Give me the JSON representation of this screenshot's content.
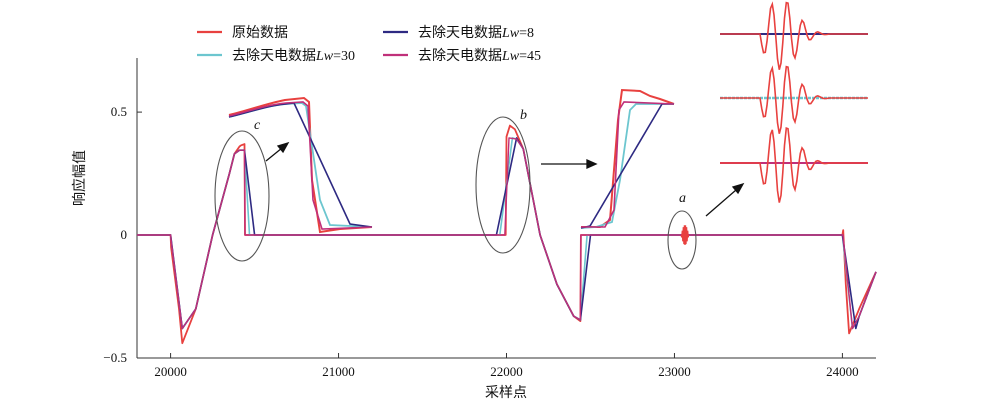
{
  "chart_data": {
    "type": "line",
    "xlabel": "采样点",
    "ylabel": "响应幅值",
    "xlim": [
      19800,
      24200
    ],
    "ylim": [
      -0.5,
      0.72
    ],
    "xticks": [
      {
        "value": 20000,
        "label": "20000"
      },
      {
        "value": 21000,
        "label": "21000"
      },
      {
        "value": 22000,
        "label": "22000"
      },
      {
        "value": 23000,
        "label": "23000"
      },
      {
        "value": 24000,
        "label": "24000"
      }
    ],
    "yticks": [
      {
        "value": 0.5,
        "label": "0.5"
      },
      {
        "value": 0,
        "label": "0"
      },
      {
        "value": -0.5,
        "label": "−0.5"
      }
    ],
    "legend": {
      "placement": "top-left",
      "entries": [
        {
          "name": "原始数据",
          "color": "#e8413f"
        },
        {
          "name": "去除天电数据",
          "sub": "Lw",
          "value": "=30",
          "color": "#6cc6cf"
        },
        {
          "name": "去除天电数据",
          "sub": "Lw",
          "value": "=8",
          "color": "#2e2a82"
        },
        {
          "name": "去除天电数据",
          "sub": "Lw",
          "value": "=45",
          "color": "#c0307a"
        }
      ]
    },
    "series": [
      {
        "name": "原始数据",
        "color": "#e8413f",
        "x": [
          19800,
          20000,
          20003,
          20050,
          20070,
          20150,
          20250,
          20350,
          20380,
          20410,
          20420,
          20440,
          20443,
          20600,
          21000,
          21500,
          21900,
          21995,
          22000,
          22020,
          22050,
          22100,
          22200,
          22300,
          22400,
          22440,
          22443,
          22900,
          23000,
          23300,
          23700,
          24000,
          24005,
          24020,
          24040,
          24100,
          24200
        ],
        "y": [
          0,
          0,
          -0.05,
          -0.3,
          -0.44,
          -0.3,
          0.0,
          0.25,
          0.33,
          0.36,
          0.365,
          0.37,
          0.0,
          0,
          0,
          0,
          0,
          0,
          0.4,
          0.445,
          0.43,
          0.35,
          0.0,
          -0.2,
          -0.33,
          -0.35,
          0.0,
          0,
          0,
          0,
          0,
          0,
          0.02,
          -0.2,
          -0.4,
          -0.3,
          -0.15
        ]
      },
      {
        "name": "去除天电数据Lw=30",
        "color": "#6cc6cf",
        "x": [
          19800,
          20000,
          20070,
          20150,
          20250,
          20350,
          20380,
          20410,
          20440,
          20470,
          20600,
          21000,
          21500,
          21960,
          22035,
          22060,
          22100,
          22200,
          22300,
          22400,
          22440,
          22480,
          22900,
          23300,
          23700,
          24000,
          24060,
          24100,
          24200
        ],
        "y": [
          0,
          0,
          -0.38,
          -0.3,
          0.0,
          0.25,
          0.33,
          0.345,
          0.345,
          0.0,
          0,
          0,
          0,
          0,
          0.395,
          0.39,
          0.35,
          0.0,
          -0.2,
          -0.33,
          -0.345,
          0.0,
          0,
          0,
          0,
          0,
          -0.38,
          -0.33,
          -0.15
        ]
      },
      {
        "name": "去除天电数据Lw=8",
        "color": "#2e2a82",
        "x": [
          19800,
          20000,
          20070,
          20150,
          20250,
          20350,
          20380,
          20410,
          20440,
          20500,
          20600,
          21000,
          21500,
          21940,
          22060,
          22100,
          22200,
          22300,
          22400,
          22440,
          22500,
          22900,
          23300,
          23700,
          24000,
          24080,
          24100,
          24200
        ],
        "y": [
          0,
          0,
          -0.38,
          -0.3,
          0.0,
          0.25,
          0.33,
          0.345,
          0.345,
          0.0,
          0,
          0,
          0,
          0,
          0.395,
          0.35,
          0.0,
          -0.2,
          -0.33,
          -0.345,
          0.0,
          0,
          0,
          0,
          0,
          -0.38,
          -0.33,
          -0.15
        ]
      },
      {
        "name": "去除天电数据Lw=45",
        "color": "#c0307a",
        "x": [
          19800,
          20000,
          20003,
          20070,
          20150,
          20250,
          20350,
          20380,
          20410,
          20440,
          20443,
          20600,
          21000,
          21500,
          21990,
          22015,
          22060,
          22100,
          22200,
          22300,
          22400,
          22440,
          22443,
          22900,
          23300,
          23700,
          24000,
          24003,
          24060,
          24100,
          24200
        ],
        "y": [
          0,
          0,
          -0.02,
          -0.38,
          -0.3,
          0.0,
          0.25,
          0.33,
          0.345,
          0.345,
          0.0,
          0,
          0,
          0,
          0,
          0.395,
          0.39,
          0.35,
          0.0,
          -0.2,
          -0.33,
          -0.345,
          0.0,
          0,
          0,
          0,
          0,
          0.0,
          -0.38,
          -0.33,
          -0.15
        ]
      }
    ],
    "annotations": [
      {
        "label": "c",
        "x": 20430,
        "y": 0.18
      },
      {
        "label": "b",
        "x": 22020,
        "y": 0.2
      },
      {
        "label": "a",
        "x": 23060,
        "y": 0.0
      }
    ]
  }
}
